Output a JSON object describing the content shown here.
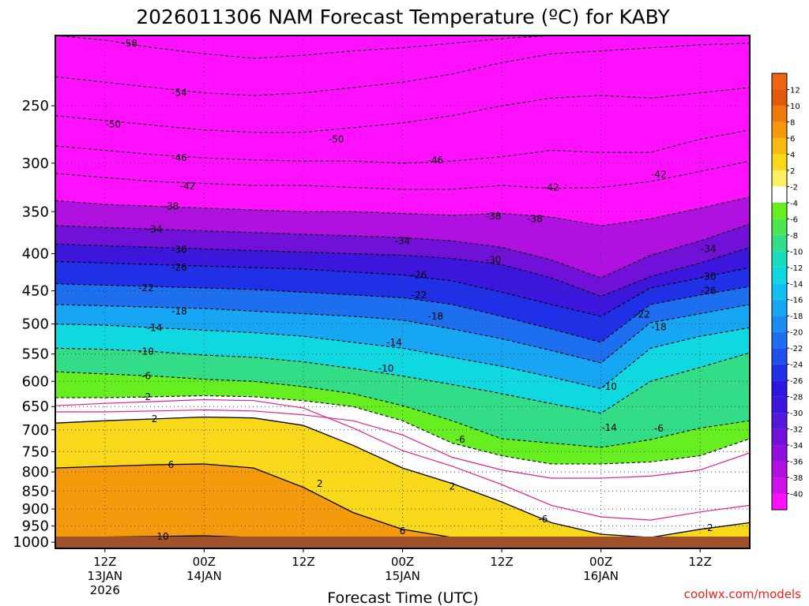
{
  "chart_data": {
    "type": "heatmap",
    "title": "2026011306 NAM Forecast Temperature (ºC) for KABY",
    "xlabel": "Forecast Time (UTC)",
    "ylabel": "",
    "credit": "coolwx.com/models",
    "y_axis": {
      "unit": "hPa",
      "scale": "pressure (reversed)",
      "ticks": [
        250,
        300,
        350,
        400,
        450,
        500,
        550,
        600,
        650,
        700,
        750,
        800,
        850,
        900,
        950,
        1000
      ],
      "range": [
        1020,
        200
      ]
    },
    "x_axis": {
      "start": "2026-01-13 06Z",
      "hours_range": [
        0,
        84
      ],
      "ticks": [
        {
          "hour": 6,
          "line1": "12Z",
          "line2": "13JAN",
          "line3": "2026"
        },
        {
          "hour": 18,
          "line1": "00Z",
          "line2": "14JAN",
          "line3": ""
        },
        {
          "hour": 30,
          "line1": "12Z",
          "line2": "",
          "line3": ""
        },
        {
          "hour": 42,
          "line1": "00Z",
          "line2": "15JAN",
          "line3": ""
        },
        {
          "hour": 54,
          "line1": "12Z",
          "line2": "",
          "line3": ""
        },
        {
          "hour": 66,
          "line1": "00Z",
          "line2": "16JAN",
          "line3": ""
        },
        {
          "hour": 78,
          "line1": "12Z",
          "line2": "",
          "line3": ""
        }
      ]
    },
    "colorbar": {
      "labels": [
        "12",
        "10",
        "8",
        "6",
        "4",
        "2",
        "-2",
        "-4",
        "-6",
        "-8",
        "-10",
        "-12",
        "-14",
        "-16",
        "-18",
        "-20",
        "-22",
        "-24",
        "-26",
        "-28",
        "-30",
        "-32",
        "-34",
        "-36",
        "-38",
        "-40"
      ],
      "colors": [
        "#e05a0a",
        "#ed7a0a",
        "#f49a0c",
        "#f6ba10",
        "#f8d81a",
        "#fdf060",
        "#ffffff",
        "#66ee20",
        "#4ce650",
        "#33dd88",
        "#18ddbb",
        "#10d8e0",
        "#12c0f0",
        "#16a6f4",
        "#1a8cf4",
        "#1e6ef0",
        "#2050ec",
        "#2030e6",
        "#2a18e0",
        "#3c16dc",
        "#5418d8",
        "#7010d8",
        "#9010dc",
        "#b010e0",
        "#d010e8",
        "#ff10ff"
      ],
      "top_color": "#ee6410"
    },
    "series": [
      {
        "name": "-58",
        "hours": [
          0,
          6,
          12,
          18,
          24,
          30,
          36,
          42,
          48,
          54,
          60,
          66,
          72,
          78,
          84
        ],
        "hpa": [
          200,
          203,
          208,
          212,
          215,
          213,
          210,
          208,
          205,
          202,
          200,
          200,
          200,
          200,
          200
        ]
      },
      {
        "name": "-54",
        "hours": [
          0,
          6,
          12,
          18,
          24,
          30,
          36,
          42,
          48,
          54,
          60,
          66,
          72,
          78,
          84
        ],
        "hpa": [
          228,
          232,
          236,
          240,
          242,
          240,
          236,
          232,
          226,
          218,
          212,
          210,
          208,
          206,
          205
        ]
      },
      {
        "name": "-50",
        "hours": [
          0,
          6,
          12,
          18,
          24,
          30,
          36,
          42,
          48,
          54,
          60,
          66,
          72,
          78,
          84
        ],
        "hpa": [
          258,
          262,
          266,
          270,
          272,
          272,
          268,
          264,
          258,
          250,
          244,
          242,
          244,
          240,
          236
        ]
      },
      {
        "name": "-46",
        "hours": [
          0,
          6,
          12,
          18,
          24,
          30,
          36,
          42,
          48,
          54,
          60,
          66,
          72,
          78,
          84
        ],
        "hpa": [
          284,
          288,
          292,
          295,
          297,
          298,
          298,
          300,
          298,
          294,
          288,
          290,
          290,
          278,
          270
        ]
      },
      {
        "name": "-42",
        "hours": [
          0,
          6,
          12,
          18,
          24,
          30,
          36,
          42,
          48,
          54,
          60,
          66,
          72,
          78,
          84
        ],
        "hpa": [
          310,
          314,
          318,
          320,
          322,
          322,
          324,
          326,
          326,
          322,
          325,
          324,
          318,
          308,
          298
        ]
      },
      {
        "name": "-38",
        "hours": [
          0,
          6,
          12,
          18,
          24,
          30,
          36,
          42,
          48,
          54,
          60,
          66,
          72,
          78,
          84
        ],
        "hpa": [
          338,
          342,
          344,
          346,
          348,
          350,
          350,
          352,
          354,
          352,
          356,
          366,
          358,
          346,
          334
        ]
      },
      {
        "name": "-34",
        "hours": [
          0,
          6,
          12,
          18,
          24,
          30,
          36,
          42,
          48,
          54,
          60,
          66,
          72,
          78,
          84
        ],
        "hpa": [
          366,
          368,
          370,
          372,
          374,
          376,
          378,
          380,
          384,
          392,
          408,
          432,
          402,
          384,
          364
        ]
      },
      {
        "name": "-30",
        "hours": [
          0,
          6,
          12,
          18,
          24,
          30,
          36,
          42,
          48,
          54,
          60,
          66,
          72,
          78,
          84
        ],
        "hpa": [
          388,
          390,
          392,
          394,
          396,
          398,
          400,
          402,
          406,
          414,
          432,
          458,
          430,
          412,
          392
        ]
      },
      {
        "name": "-26",
        "hours": [
          0,
          6,
          12,
          18,
          24,
          30,
          36,
          42,
          48,
          54,
          60,
          66,
          72,
          78,
          84
        ],
        "hpa": [
          410,
          412,
          414,
          416,
          418,
          420,
          424,
          428,
          436,
          452,
          470,
          488,
          446,
          432,
          418
        ]
      },
      {
        "name": "-22",
        "hours": [
          0,
          6,
          12,
          18,
          24,
          30,
          36,
          42,
          48,
          54,
          60,
          66,
          72,
          78,
          84
        ],
        "hpa": [
          440,
          442,
          444,
          446,
          448,
          452,
          456,
          460,
          470,
          488,
          508,
          530,
          470,
          456,
          444
        ]
      },
      {
        "name": "-18",
        "hours": [
          0,
          6,
          12,
          18,
          24,
          30,
          36,
          42,
          48,
          54,
          60,
          66,
          72,
          78,
          84
        ],
        "hpa": [
          470,
          472,
          474,
          476,
          480,
          484,
          488,
          494,
          508,
          524,
          544,
          566,
          498,
          484,
          470
        ]
      },
      {
        "name": "-14",
        "hours": [
          0,
          6,
          12,
          18,
          24,
          30,
          36,
          42,
          48,
          54,
          60,
          66,
          72,
          78,
          84
        ],
        "hpa": [
          500,
          502,
          506,
          510,
          514,
          520,
          530,
          540,
          556,
          572,
          592,
          614,
          540,
          520,
          506
        ]
      },
      {
        "name": "-10",
        "hours": [
          0,
          6,
          12,
          18,
          24,
          30,
          36,
          42,
          48,
          54,
          60,
          66,
          72,
          78,
          84
        ],
        "hpa": [
          540,
          542,
          546,
          552,
          556,
          564,
          576,
          590,
          606,
          624,
          644,
          664,
          600,
          574,
          548
        ]
      },
      {
        "name": "-6",
        "hours": [
          0,
          6,
          12,
          18,
          24,
          30,
          36,
          42,
          48,
          54,
          60,
          66,
          72,
          78,
          84
        ],
        "hpa": [
          582,
          586,
          590,
          596,
          600,
          610,
          624,
          648,
          680,
          720,
          730,
          740,
          722,
          696,
          680
        ]
      },
      {
        "name": "-2",
        "hours": [
          0,
          6,
          12,
          18,
          24,
          30,
          36,
          42,
          48,
          54,
          60,
          66,
          72,
          78,
          84
        ],
        "hpa": [
          632,
          632,
          630,
          628,
          630,
          638,
          650,
          680,
          730,
          760,
          780,
          780,
          775,
          760,
          720
        ]
      },
      {
        "name": "2",
        "hours": [
          0,
          6,
          12,
          18,
          24,
          30,
          36,
          42,
          48,
          54,
          60,
          66,
          72,
          78,
          84
        ],
        "hpa": [
          685,
          680,
          676,
          672,
          674,
          690,
          735,
          790,
          830,
          880,
          940,
          975,
          985,
          960,
          940
        ]
      },
      {
        "name": "6",
        "hours": [
          0,
          6,
          12,
          18,
          24,
          30,
          36,
          42,
          48,
          54,
          60,
          66,
          72,
          78,
          84
        ],
        "hpa": [
          790,
          786,
          782,
          780,
          790,
          840,
          910,
          960,
          985,
          1000,
          1010,
          1010,
          1010,
          1010,
          1010
        ]
      },
      {
        "name": "10",
        "hours": [
          0,
          6,
          12,
          18,
          24,
          30,
          36,
          42,
          48,
          54,
          60,
          66,
          72,
          78,
          84
        ],
        "hpa": [
          985,
          984,
          982,
          980,
          985,
          1000,
          1010,
          1012,
          1012,
          1012,
          1012,
          1012,
          1012,
          1012,
          1012
        ]
      }
    ],
    "contour_labels": [
      {
        "text": "-58",
        "hour": 9,
        "hpa": 205
      },
      {
        "text": "-54",
        "hour": 15,
        "hpa": 240
      },
      {
        "text": "-50",
        "hour": 7,
        "hpa": 265
      },
      {
        "text": "-50",
        "hour": 34,
        "hpa": 278
      },
      {
        "text": "-46",
        "hour": 15,
        "hpa": 295
      },
      {
        "text": "-46",
        "hour": 46,
        "hpa": 297
      },
      {
        "text": "-42",
        "hour": 16,
        "hpa": 323
      },
      {
        "text": "-42",
        "hour": 60,
        "hpa": 324
      },
      {
        "text": "-42",
        "hour": 73,
        "hpa": 311
      },
      {
        "text": "-38",
        "hour": 14,
        "hpa": 344
      },
      {
        "text": "-38",
        "hour": 53,
        "hpa": 355
      },
      {
        "text": "-38",
        "hour": 58,
        "hpa": 358
      },
      {
        "text": "-34",
        "hour": 12,
        "hpa": 370
      },
      {
        "text": "-34",
        "hour": 42,
        "hpa": 384
      },
      {
        "text": "-34",
        "hour": 79,
        "hpa": 394
      },
      {
        "text": "-30",
        "hour": 15,
        "hpa": 395
      },
      {
        "text": "-30",
        "hour": 53,
        "hpa": 408
      },
      {
        "text": "-30",
        "hour": 79,
        "hpa": 430
      },
      {
        "text": "-26",
        "hour": 15,
        "hpa": 418
      },
      {
        "text": "-26",
        "hour": 44,
        "hpa": 428
      },
      {
        "text": "-26",
        "hour": 79,
        "hpa": 450
      },
      {
        "text": "-22",
        "hour": 11,
        "hpa": 446
      },
      {
        "text": "-22",
        "hour": 44,
        "hpa": 456
      },
      {
        "text": "-22",
        "hour": 71,
        "hpa": 485
      },
      {
        "text": "-18",
        "hour": 15,
        "hpa": 480
      },
      {
        "text": "-18",
        "hour": 46,
        "hpa": 488
      },
      {
        "text": "-18",
        "hour": 73,
        "hpa": 505
      },
      {
        "text": "-14",
        "hour": 12,
        "hpa": 506
      },
      {
        "text": "-14",
        "hour": 41,
        "hpa": 530
      },
      {
        "text": "-14",
        "hour": 67,
        "hpa": 695
      },
      {
        "text": "-10",
        "hour": 11,
        "hpa": 546
      },
      {
        "text": "-10",
        "hour": 40,
        "hpa": 576
      },
      {
        "text": "-10",
        "hour": 67,
        "hpa": 610
      },
      {
        "text": "-6",
        "hour": 11,
        "hpa": 590
      },
      {
        "text": "-6",
        "hour": 49,
        "hpa": 722
      },
      {
        "text": "-6",
        "hour": 73,
        "hpa": 697
      },
      {
        "text": "-6",
        "hour": 59,
        "hpa": 930
      },
      {
        "text": "-2",
        "hour": 11,
        "hpa": 630
      },
      {
        "text": "-2",
        "hour": 79,
        "hpa": 956
      },
      {
        "text": "2",
        "hour": 12,
        "hpa": 676
      },
      {
        "text": "2",
        "hour": 32,
        "hpa": 830
      },
      {
        "text": "2",
        "hour": 48,
        "hpa": 838
      },
      {
        "text": "6",
        "hour": 14,
        "hpa": 782
      },
      {
        "text": "6",
        "hour": 42,
        "hpa": 965
      },
      {
        "text": "10",
        "hour": 13,
        "hpa": 982
      }
    ]
  }
}
